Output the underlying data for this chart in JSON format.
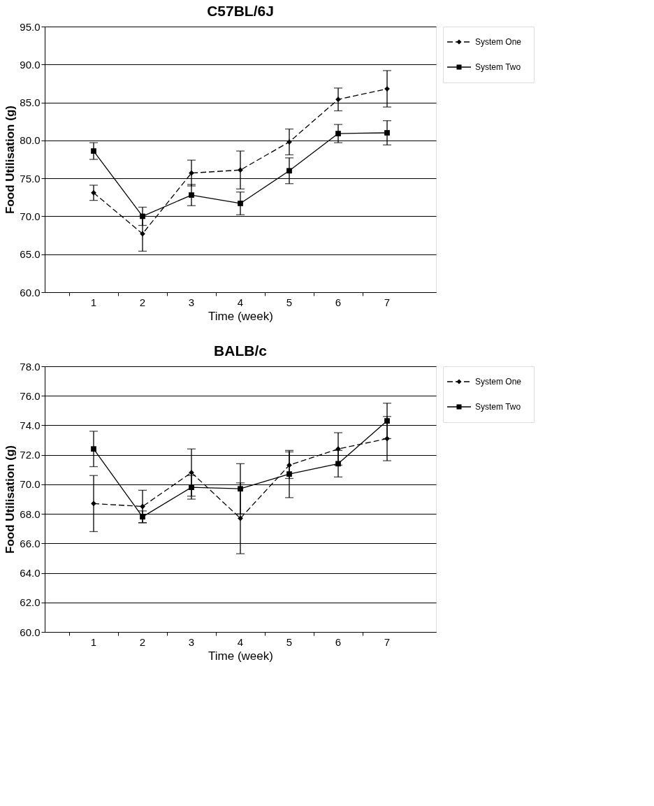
{
  "chart_data": [
    {
      "type": "line",
      "title": "C57BL/6J",
      "xlabel": "Time (week)",
      "ylabel": "Food Utilisation (g)",
      "categories": [
        "1",
        "2",
        "3",
        "4",
        "5",
        "6",
        "7"
      ],
      "ylim": [
        60,
        95
      ],
      "yticks": [
        {
          "value": 60,
          "label": "60.0"
        },
        {
          "value": 65,
          "label": "65.0"
        },
        {
          "value": 70,
          "label": "70.0"
        },
        {
          "value": 75,
          "label": "75.0"
        },
        {
          "value": 80,
          "label": "80.0"
        },
        {
          "value": 85,
          "label": "85.0"
        },
        {
          "value": 90,
          "label": "90.0"
        },
        {
          "value": 95,
          "label": "95.0"
        }
      ],
      "grid": "y",
      "legend": "right",
      "series": [
        {
          "name": "System One",
          "color": "#000000",
          "line_style": "dashed",
          "marker": "diamond",
          "values": [
            73.1,
            67.7,
            75.7,
            76.1,
            79.8,
            85.4,
            86.8
          ],
          "errors": [
            1.0,
            2.3,
            1.7,
            2.5,
            1.7,
            1.5,
            2.4
          ]
        },
        {
          "name": "System Two",
          "color": "#000000",
          "line_style": "solid",
          "marker": "square",
          "values": [
            78.6,
            70.0,
            72.8,
            71.7,
            76.0,
            80.9,
            81.0
          ],
          "errors": [
            1.1,
            1.2,
            1.4,
            1.5,
            1.7,
            1.2,
            1.6
          ]
        }
      ]
    },
    {
      "type": "line",
      "title": "BALB/c",
      "xlabel": "Time (week)",
      "ylabel": "Food Utilisation (g)",
      "categories": [
        "1",
        "2",
        "3",
        "4",
        "5",
        "6",
        "7"
      ],
      "ylim": [
        60,
        78
      ],
      "yticks": [
        {
          "value": 60,
          "label": "60.0"
        },
        {
          "value": 62,
          "label": "62.0"
        },
        {
          "value": 64,
          "label": "64.0"
        },
        {
          "value": 66,
          "label": "66.0"
        },
        {
          "value": 68,
          "label": "68.0"
        },
        {
          "value": 70,
          "label": "70.0"
        },
        {
          "value": 72,
          "label": "72.0"
        },
        {
          "value": 74,
          "label": "74.0"
        },
        {
          "value": 76,
          "label": "76.0"
        },
        {
          "value": 78,
          "label": "78.0"
        }
      ],
      "grid": "y",
      "legend": "right",
      "series": [
        {
          "name": "System One",
          "color": "#000000",
          "line_style": "dashed",
          "marker": "diamond",
          "values": [
            68.7,
            68.5,
            70.8,
            67.7,
            71.3,
            72.4,
            73.1
          ],
          "errors": [
            1.9,
            1.1,
            1.6,
            2.4,
            0.9,
            1.1,
            1.5
          ]
        },
        {
          "name": "System Two",
          "color": "#000000",
          "line_style": "solid",
          "marker": "square",
          "values": [
            72.4,
            67.8,
            69.8,
            69.7,
            70.7,
            71.4,
            74.3
          ],
          "errors": [
            1.2,
            0.4,
            0.8,
            1.7,
            1.6,
            0.9,
            1.2
          ]
        }
      ]
    }
  ]
}
